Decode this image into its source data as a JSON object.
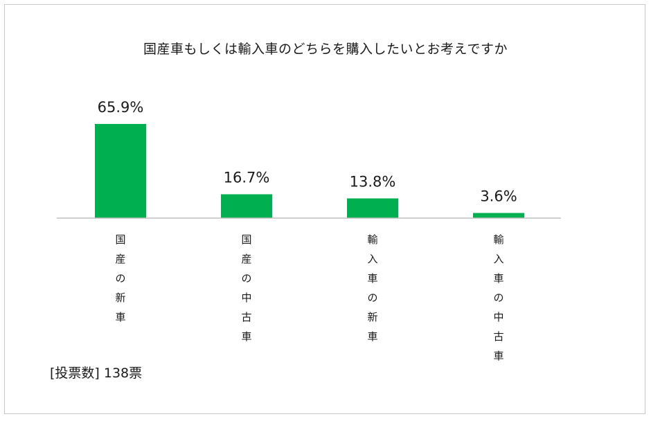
{
  "chart_data": {
    "type": "bar",
    "title": "国産車もしくは輸入車のどちらを購入したいとお考えですか",
    "categories": [
      "国産の新車",
      "国産の中古車",
      "輸入車の新車",
      "輸入車の中古車"
    ],
    "values": [
      65.9,
      16.7,
      13.8,
      3.6
    ],
    "value_labels": [
      "65.9%",
      "16.7%",
      "13.8%",
      "3.6%"
    ],
    "unit": "%",
    "ylim": [
      0,
      65.9
    ],
    "grid": false,
    "bar_color": "#00b050",
    "axis_color": "#bfbfbf",
    "label_orientation": "vertical"
  },
  "note": "[投票数] 138票"
}
